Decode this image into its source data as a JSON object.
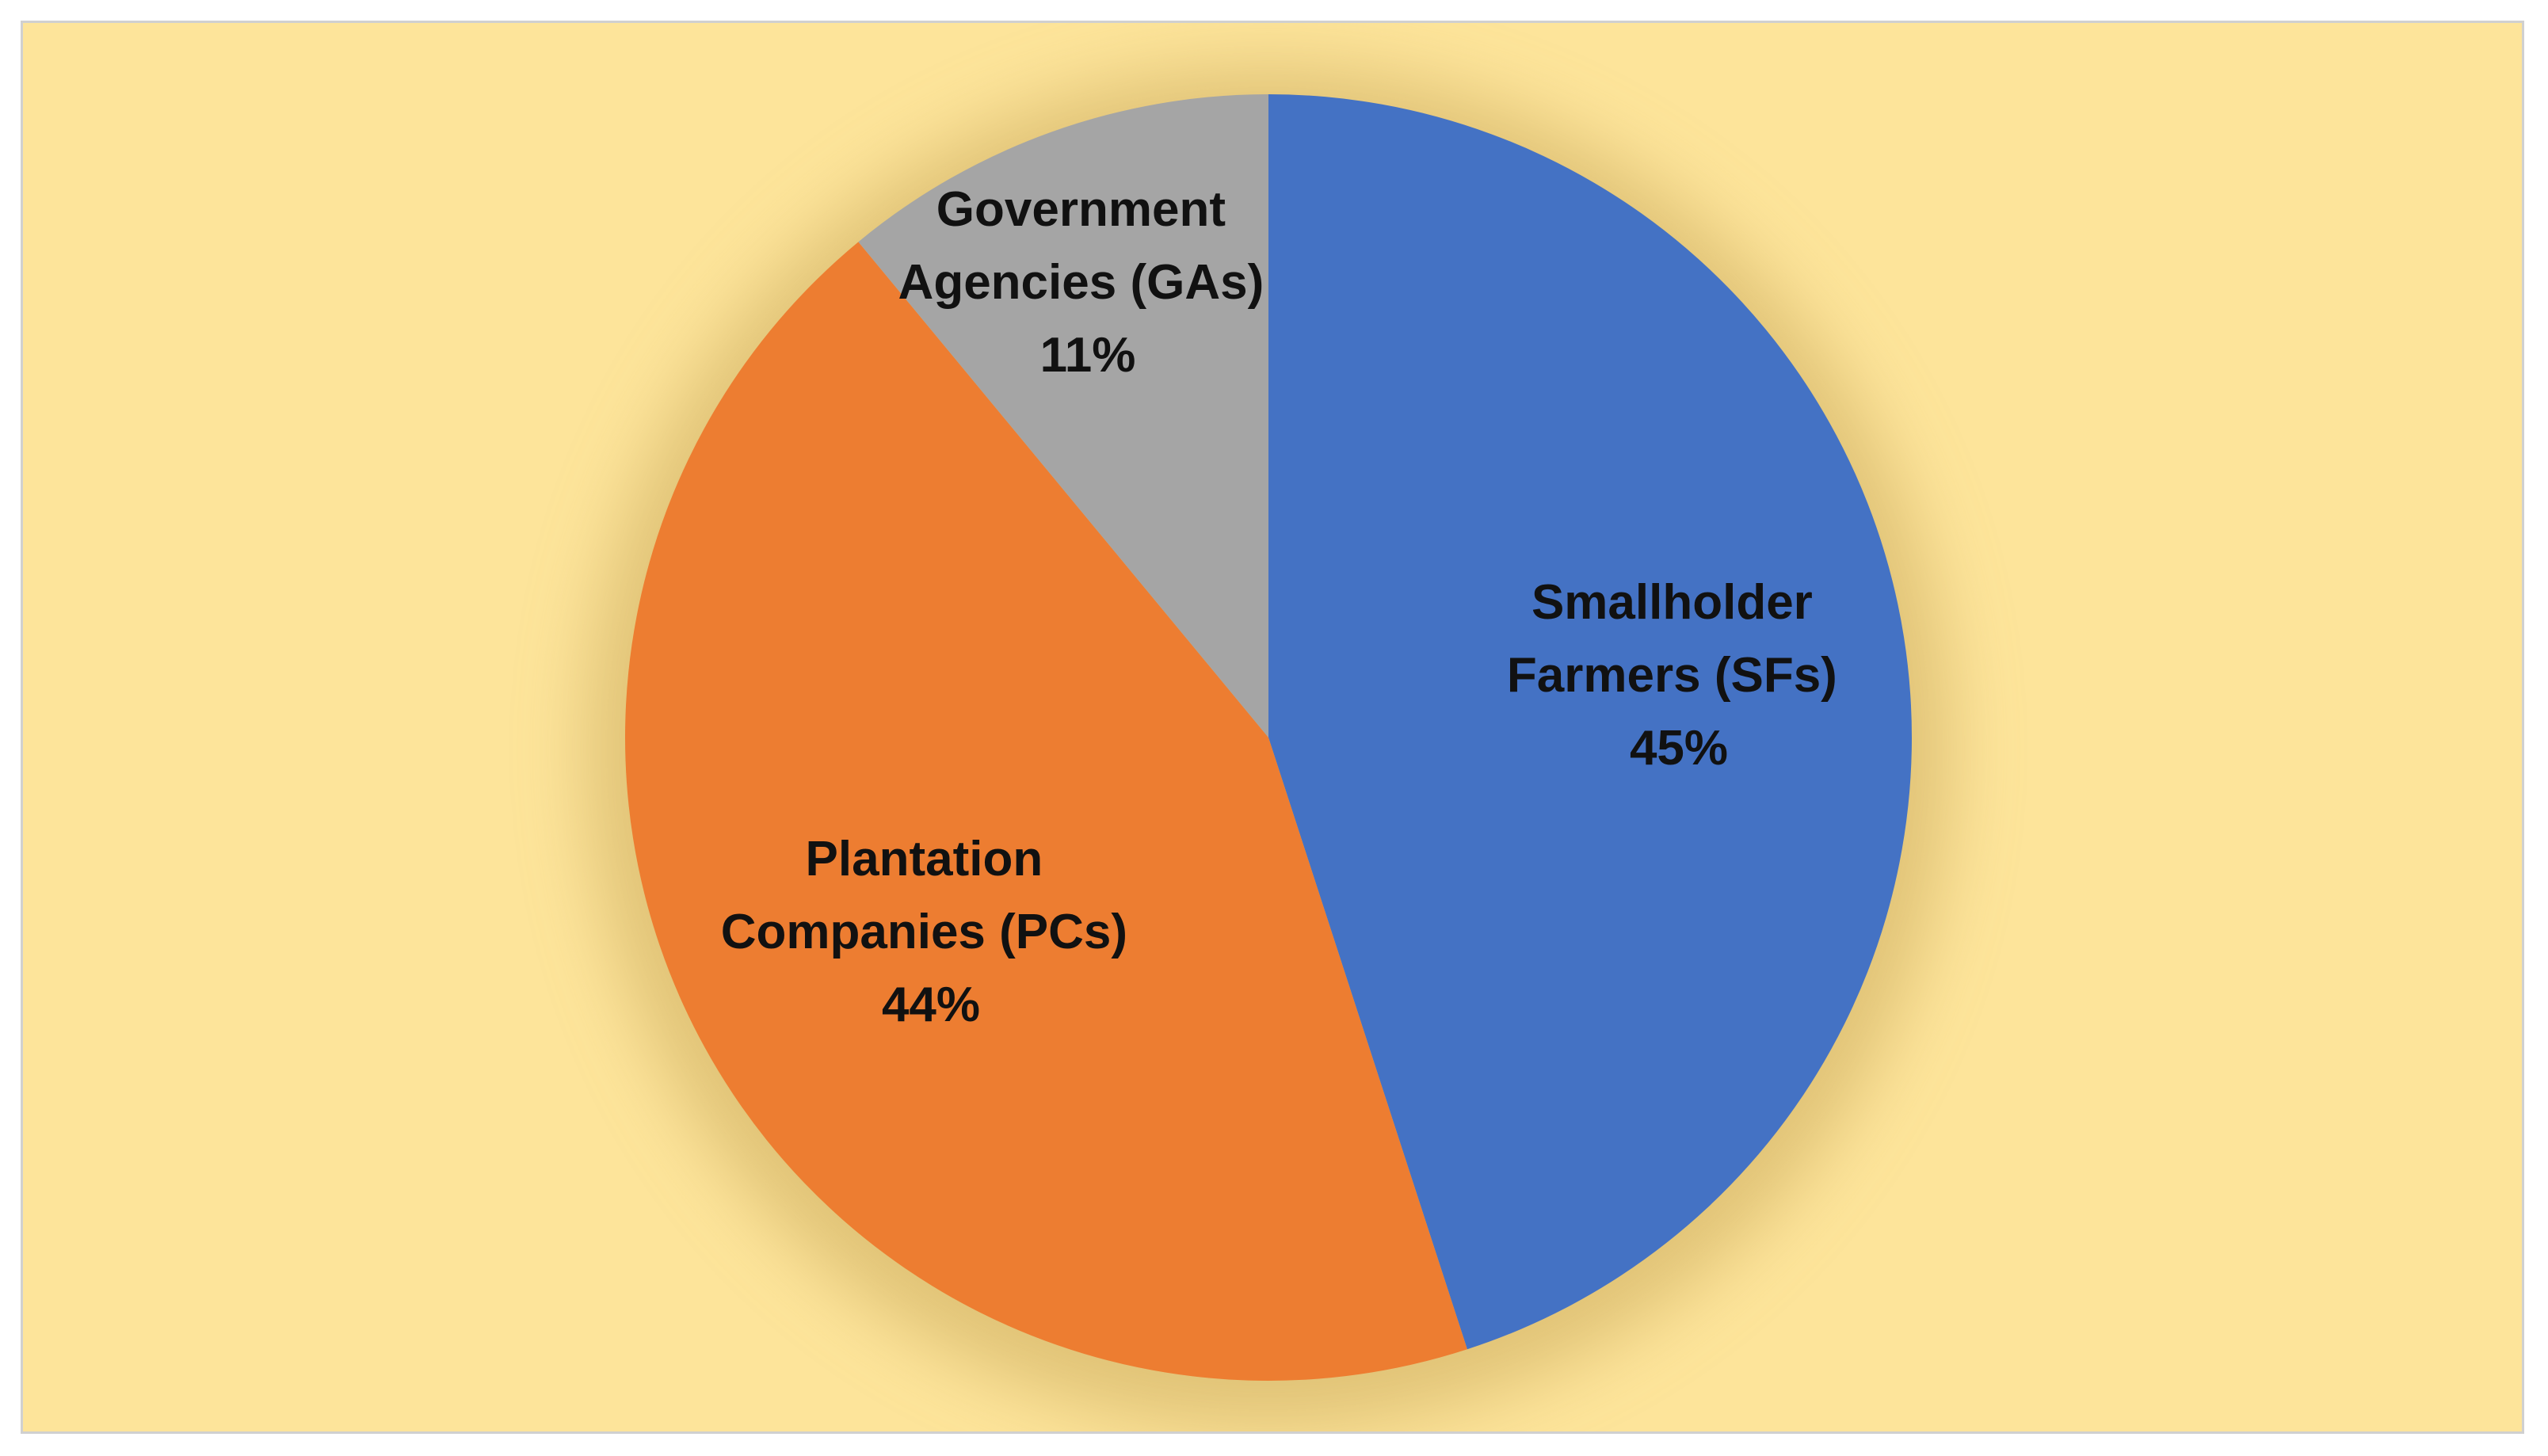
{
  "chart_data": {
    "type": "pie",
    "title": "",
    "start_angle_deg": 0,
    "direction": "clockwise",
    "slices": [
      {
        "name_line1": "Smallholder",
        "name_line2": "Farmers (SFs)",
        "value": 45,
        "value_label": "45%",
        "color": "#4472c4"
      },
      {
        "name_line1": "Plantation",
        "name_line2": "Companies (PCs)",
        "value": 44,
        "value_label": "44%",
        "color": "#ed7d31"
      },
      {
        "name_line1": "Government",
        "name_line2": "Agencies (GAs)",
        "value": 11,
        "value_label": "11%",
        "color": "#a5a5a5"
      }
    ]
  },
  "colors": {
    "background": "#fde49a",
    "border": "#d0d0d0",
    "label_text": "#111111"
  }
}
